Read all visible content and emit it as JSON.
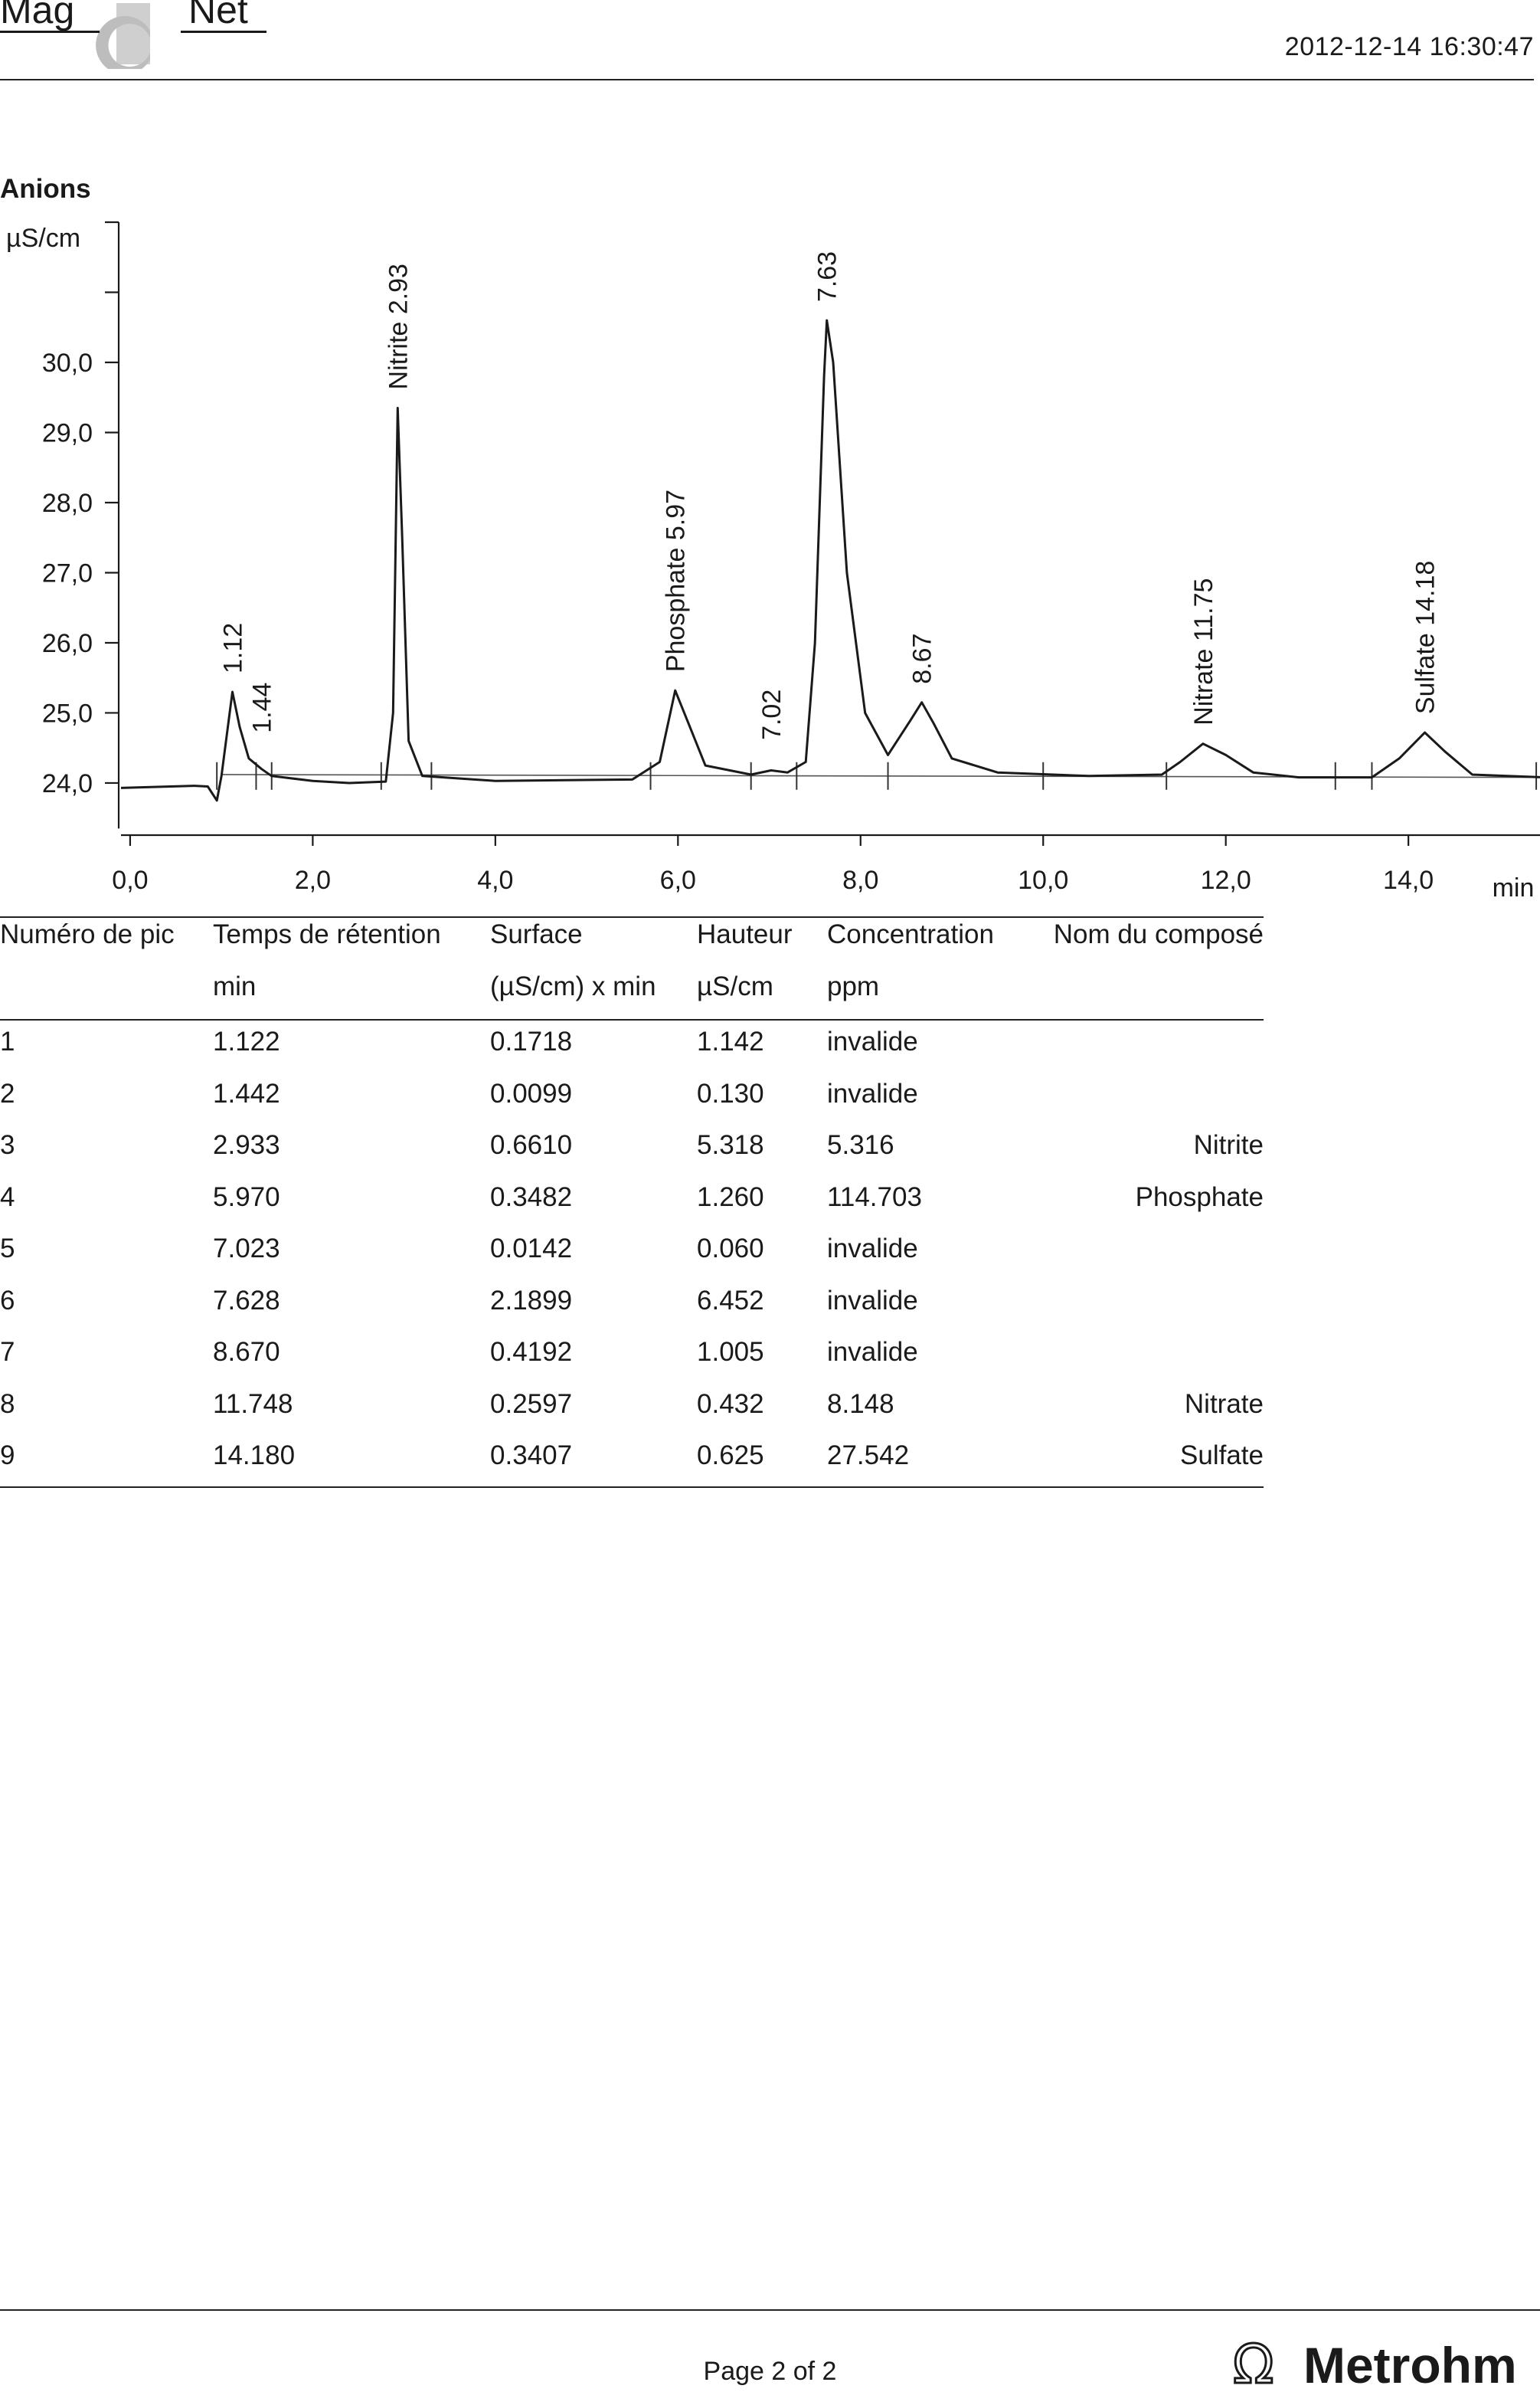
{
  "header": {
    "logo_text": "MagIC Net",
    "timestamp": "2012-12-14   16:30:47"
  },
  "chart_data": {
    "type": "line",
    "title": "Anions",
    "ylabel": "µS/cm",
    "xlabel": "min",
    "xlim": [
      -0.1,
      15.5
    ],
    "ylim": [
      23.3,
      32.0
    ],
    "x_ticks": [
      "0,0",
      "2,0",
      "4,0",
      "6,0",
      "8,0",
      "10,0",
      "12,0",
      "14,0"
    ],
    "y_ticks": [
      "24,0",
      "25,0",
      "26,0",
      "27,0",
      "28,0",
      "29,0",
      "30,0"
    ],
    "grid": false,
    "baseline": 24.0,
    "series": [
      {
        "points": [
          [
            -0.1,
            23.93
          ],
          [
            0.7,
            23.96
          ],
          [
            0.85,
            23.95
          ],
          [
            0.95,
            23.75
          ],
          [
            1.0,
            24.1
          ],
          [
            1.12,
            25.3
          ],
          [
            1.2,
            24.8
          ],
          [
            1.3,
            24.35
          ],
          [
            1.44,
            24.2
          ],
          [
            1.55,
            24.1
          ],
          [
            2.0,
            24.03
          ],
          [
            2.4,
            24.0
          ],
          [
            2.8,
            24.02
          ],
          [
            2.88,
            25.0
          ],
          [
            2.93,
            29.35
          ],
          [
            2.98,
            27.5
          ],
          [
            3.05,
            24.6
          ],
          [
            3.2,
            24.1
          ],
          [
            4.0,
            24.03
          ],
          [
            5.5,
            24.05
          ],
          [
            5.8,
            24.3
          ],
          [
            5.97,
            25.32
          ],
          [
            6.1,
            24.9
          ],
          [
            6.3,
            24.25
          ],
          [
            6.8,
            24.12
          ],
          [
            7.02,
            24.18
          ],
          [
            7.2,
            24.15
          ],
          [
            7.4,
            24.3
          ],
          [
            7.5,
            26.0
          ],
          [
            7.6,
            29.8
          ],
          [
            7.63,
            30.6
          ],
          [
            7.7,
            30.0
          ],
          [
            7.85,
            27.0
          ],
          [
            8.05,
            25.0
          ],
          [
            8.3,
            24.4
          ],
          [
            8.55,
            24.9
          ],
          [
            8.67,
            25.15
          ],
          [
            8.8,
            24.85
          ],
          [
            9.0,
            24.35
          ],
          [
            9.5,
            24.15
          ],
          [
            10.5,
            24.1
          ],
          [
            11.3,
            24.12
          ],
          [
            11.5,
            24.3
          ],
          [
            11.75,
            24.56
          ],
          [
            12.0,
            24.4
          ],
          [
            12.3,
            24.15
          ],
          [
            12.8,
            24.08
          ],
          [
            13.6,
            24.08
          ],
          [
            13.9,
            24.35
          ],
          [
            14.18,
            24.72
          ],
          [
            14.4,
            24.45
          ],
          [
            14.7,
            24.12
          ],
          [
            15.5,
            24.08
          ]
        ]
      }
    ],
    "peak_labels": [
      {
        "x": 1.12,
        "y": 25.3,
        "text": "1.12"
      },
      {
        "x": 1.44,
        "y": 24.45,
        "text": "1.44"
      },
      {
        "x": 2.93,
        "y": 29.35,
        "text": "Nitrite 2.93"
      },
      {
        "x": 5.97,
        "y": 25.32,
        "text": "Phosphate 5.97"
      },
      {
        "x": 7.02,
        "y": 24.35,
        "text": "7.02"
      },
      {
        "x": 7.63,
        "y": 30.6,
        "text": "7.63"
      },
      {
        "x": 8.67,
        "y": 25.15,
        "text": "8.67"
      },
      {
        "x": 11.75,
        "y": 24.56,
        "text": "Nitrate 11.75"
      },
      {
        "x": 14.18,
        "y": 24.72,
        "text": "Sulfate 14.18"
      }
    ],
    "integration_markers": [
      0.95,
      1.38,
      1.55,
      2.75,
      3.3,
      5.7,
      6.8,
      7.3,
      8.3,
      10.0,
      11.35,
      13.2,
      13.6,
      15.4
    ]
  },
  "results_table": {
    "headers": [
      {
        "line1": "Numéro de pic",
        "line2": ""
      },
      {
        "line1": "Temps de rétention",
        "line2": "min"
      },
      {
        "line1": "Surface",
        "line2": "(µS/cm) x min"
      },
      {
        "line1": "Hauteur",
        "line2": "µS/cm"
      },
      {
        "line1": "Concentration",
        "line2": "ppm"
      },
      {
        "line1": "Nom du composé",
        "line2": ""
      }
    ],
    "rows": [
      [
        "1",
        "1.122",
        "0.1718",
        "1.142",
        "invalide",
        ""
      ],
      [
        "2",
        "1.442",
        "0.0099",
        "0.130",
        "invalide",
        ""
      ],
      [
        "3",
        "2.933",
        "0.6610",
        "5.318",
        "5.316",
        "Nitrite"
      ],
      [
        "4",
        "5.970",
        "0.3482",
        "1.260",
        "114.703",
        "Phosphate"
      ],
      [
        "5",
        "7.023",
        "0.0142",
        "0.060",
        "invalide",
        ""
      ],
      [
        "6",
        "7.628",
        "2.1899",
        "6.452",
        "invalide",
        ""
      ],
      [
        "7",
        "8.670",
        "0.4192",
        "1.005",
        "invalide",
        ""
      ],
      [
        "8",
        "11.748",
        "0.2597",
        "0.432",
        "8.148",
        "Nitrate"
      ],
      [
        "9",
        "14.180",
        "0.3407",
        "0.625",
        "27.542",
        "Sulfate"
      ]
    ]
  },
  "footer": {
    "page_label": "Page 2 of 2",
    "brand": "Metrohm",
    "brand_symbol": "Ω"
  }
}
